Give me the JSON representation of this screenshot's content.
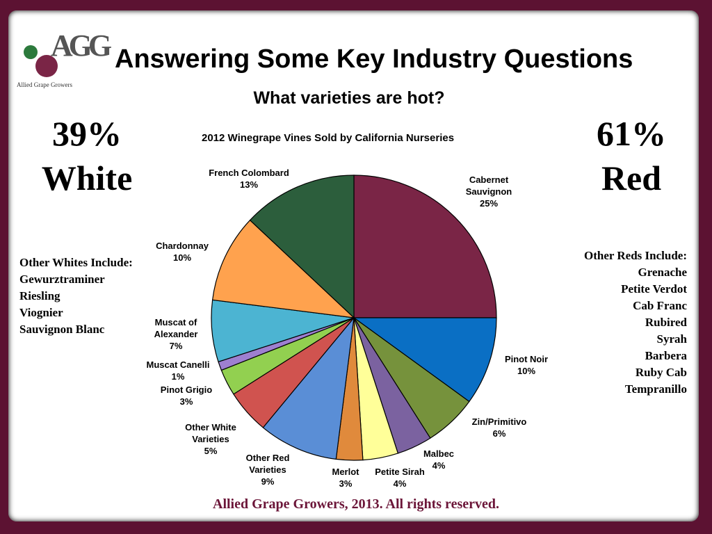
{
  "header": {
    "logo_letters": "AGG",
    "logo_name": "Allied Grape Growers",
    "title": "Answering Some Key Industry Questions",
    "subtitle": "What varieties are hot?"
  },
  "white_share": {
    "percent": "39%",
    "label": "White"
  },
  "red_share": {
    "percent": "61%",
    "label": "Red"
  },
  "other_whites": {
    "heading": "Other Whites Include:",
    "items": [
      "Gewurztraminer",
      "Riesling",
      "Viognier",
      "Sauvignon Blanc"
    ]
  },
  "other_reds": {
    "heading": "Other Reds Include:",
    "items": [
      "Grenache",
      "Petite Verdot",
      "Cab Franc",
      "Rubired",
      "Syrah",
      "Barbera",
      "Ruby Cab",
      "Tempranillo"
    ]
  },
  "chart_data": {
    "type": "pie",
    "title": "2012 Winegrape Vines Sold by California Nurseries",
    "categories": [
      "Cabernet Sauvignon",
      "Pinot Noir",
      "Zin/Primitivo",
      "Malbec",
      "Petite Sirah",
      "Merlot",
      "Other Red Varieties",
      "Other White Varieties",
      "Pinot Grigio",
      "Muscat Canelli",
      "Muscat of Alexander",
      "Chardonnay",
      "French Colombard"
    ],
    "values": [
      25,
      10,
      6,
      4,
      4,
      3,
      9,
      5,
      3,
      1,
      7,
      10,
      13
    ],
    "value_labels": [
      "25%",
      "10%",
      "6%",
      "4%",
      "4%",
      "3%",
      "9%",
      "5%",
      "3%",
      "1%",
      "7%",
      "10%",
      "13%"
    ],
    "colors": [
      "#7a2546",
      "#0a6fc4",
      "#76923c",
      "#7b62a0",
      "#ffff99",
      "#e08a3c",
      "#5a8ed6",
      "#d0534f",
      "#92d050",
      "#9e80d0",
      "#4cb4d2",
      "#ffa24e",
      "#2c5e3c"
    ]
  },
  "footer": "Allied Grape Growers, 2013.  All rights reserved."
}
